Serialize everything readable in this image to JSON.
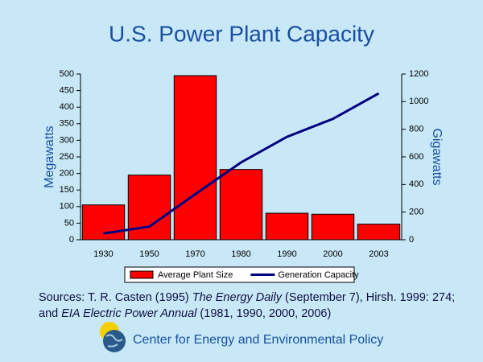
{
  "chart_data": {
    "type": "bar",
    "title": "U.S. Power Plant Capacity",
    "categories": [
      "1930",
      "1950",
      "1970",
      "1980",
      "1990",
      "2000",
      "2003"
    ],
    "series": [
      {
        "name": "Average Plant Size",
        "type": "bar",
        "color": "#ff0000",
        "values": [
          105,
          195,
          495,
          212,
          80,
          77,
          47
        ]
      },
      {
        "name": "Generation Capacity",
        "type": "line",
        "axis": "y2",
        "color": "#000080",
        "values": [
          45,
          95,
          330,
          560,
          745,
          875,
          1060
        ]
      }
    ],
    "ylabel": "Megawatts",
    "y2label": "Gigawatts",
    "ylim": [
      0,
      500
    ],
    "yticks": [
      0,
      50,
      100,
      150,
      200,
      250,
      300,
      350,
      400,
      450,
      500
    ],
    "y2lim": [
      0,
      1200
    ],
    "y2ticks": [
      0,
      200,
      400,
      600,
      800,
      1000,
      1200
    ],
    "grid": false
  },
  "sources": [
    "Sources: T. R. Casten (1995) ",
    "The Energy Daily",
    " (September 7), Hirsh. 1999: 274; and ",
    "EIA Electric Power Annual",
    " (1981, 1990, 2000, 2006)"
  ],
  "footer": "Center for Energy and Environmental Policy"
}
